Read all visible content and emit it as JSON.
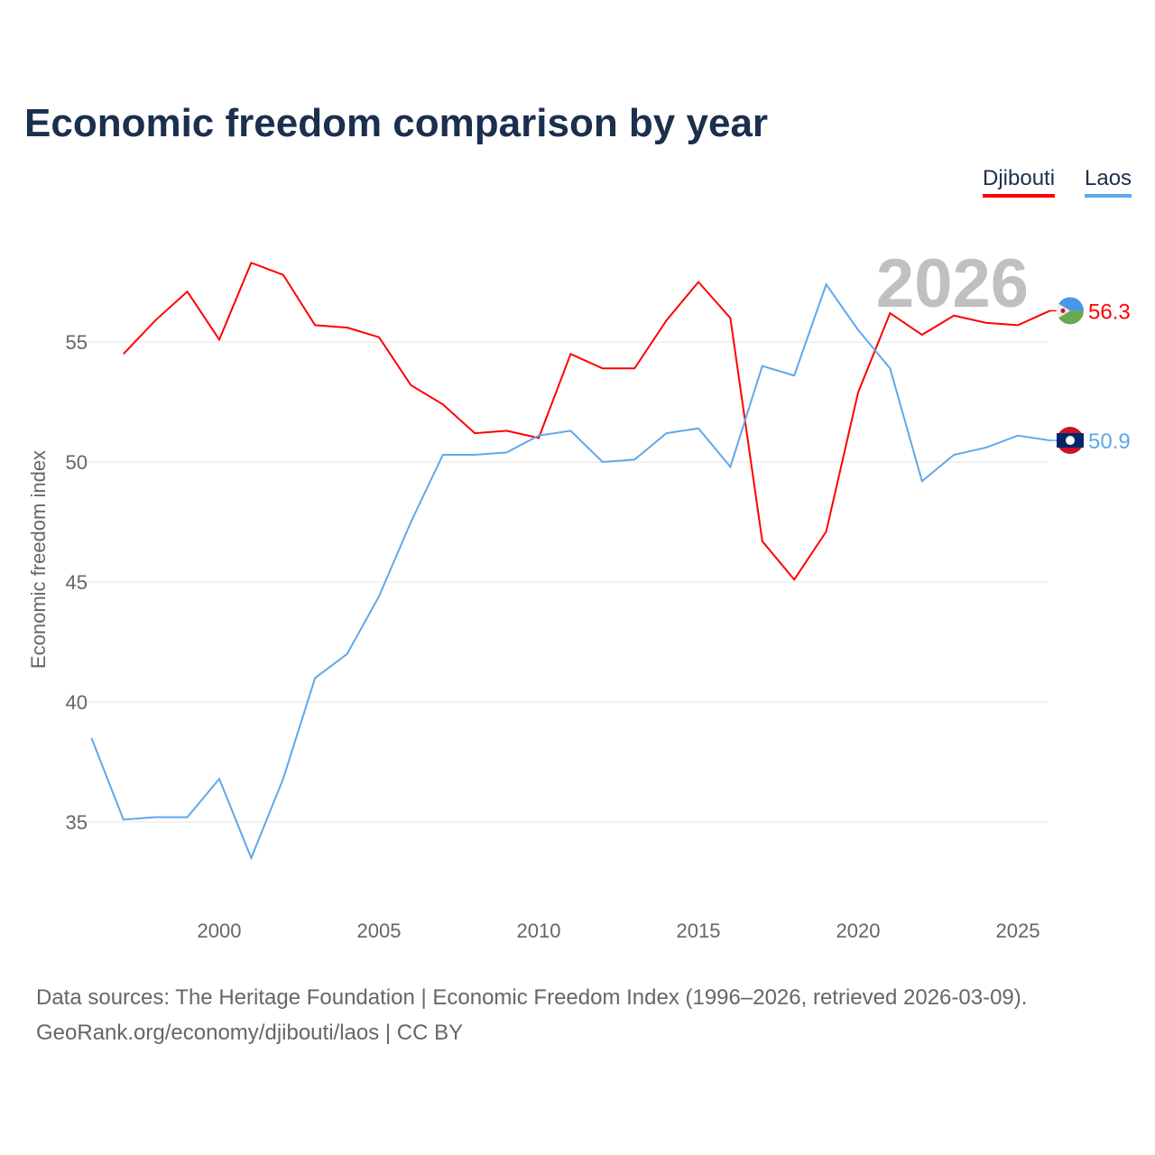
{
  "title": "Economic freedom comparison by year",
  "footer": {
    "line1": "Data sources: The Heritage Foundation | Economic Freedom Index (1996–2026, retrieved 2026-03-09).",
    "line2": "GeoRank.org/economy/djibouti/laos | CC BY"
  },
  "chart_data": {
    "type": "line",
    "title": "Economic freedom comparison by year",
    "xlabel": "",
    "ylabel": "Economic freedom index",
    "xlim": [
      1996,
      2026
    ],
    "ylim": [
      32,
      60
    ],
    "xticks": [
      2000,
      2005,
      2010,
      2015,
      2020,
      2025
    ],
    "yticks": [
      35,
      40,
      45,
      50,
      55
    ],
    "year_label": "2026",
    "legend": "top-right",
    "series": [
      {
        "name": "Djibouti",
        "color": "#ff0000",
        "end_label": "56.3",
        "x": [
          1997,
          1998,
          1999,
          2000,
          2001,
          2002,
          2003,
          2004,
          2005,
          2006,
          2007,
          2008,
          2009,
          2010,
          2011,
          2012,
          2013,
          2014,
          2015,
          2016,
          2017,
          2018,
          2019,
          2020,
          2021,
          2022,
          2023,
          2024,
          2025,
          2026
        ],
        "values": [
          54.5,
          55.9,
          57.1,
          55.1,
          58.3,
          57.8,
          55.7,
          55.6,
          55.2,
          53.2,
          52.4,
          51.2,
          51.3,
          51.0,
          54.5,
          53.9,
          53.9,
          55.9,
          57.5,
          56.0,
          46.7,
          45.1,
          47.1,
          52.9,
          56.2,
          55.3,
          56.1,
          55.8,
          55.7,
          56.3
        ]
      },
      {
        "name": "Laos",
        "color": "#5fa8eb",
        "end_label": "50.9",
        "x": [
          1996,
          1997,
          1998,
          1999,
          2000,
          2001,
          2002,
          2003,
          2004,
          2005,
          2006,
          2007,
          2008,
          2009,
          2010,
          2011,
          2012,
          2013,
          2014,
          2015,
          2016,
          2017,
          2018,
          2019,
          2020,
          2021,
          2022,
          2023,
          2024,
          2025,
          2026
        ],
        "values": [
          38.5,
          35.1,
          35.2,
          35.2,
          36.8,
          33.5,
          36.8,
          41.0,
          42.0,
          44.4,
          47.5,
          50.3,
          50.3,
          50.4,
          51.1,
          51.3,
          50.0,
          50.1,
          51.2,
          51.4,
          49.8,
          54.0,
          53.6,
          57.4,
          55.5,
          53.9,
          49.2,
          50.3,
          50.6,
          51.1,
          50.9
        ]
      }
    ]
  }
}
